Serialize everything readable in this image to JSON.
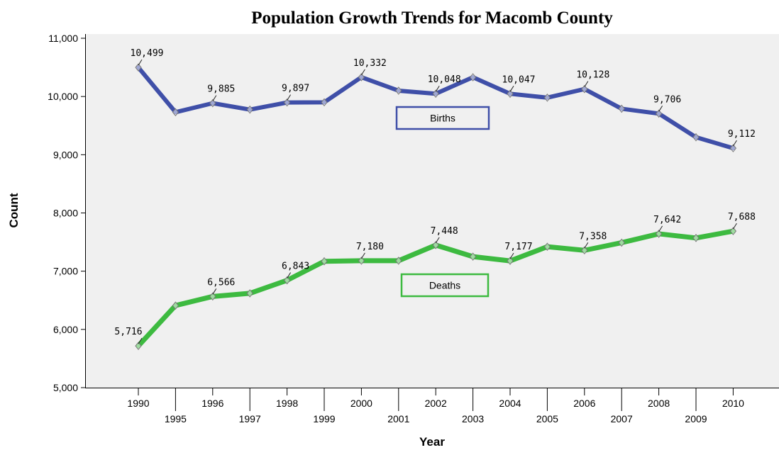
{
  "chart_data": {
    "type": "line",
    "title": "Population Growth Trends for Macomb County",
    "xlabel": "Year",
    "ylabel": "Count",
    "categories": [
      "1990",
      "1995",
      "1996",
      "1997",
      "1998",
      "1999",
      "2000",
      "2001",
      "2002",
      "2003",
      "2004",
      "2005",
      "2006",
      "2007",
      "2008",
      "2009",
      "2010"
    ],
    "ylim": [
      5000,
      11000
    ],
    "yticks": [
      "5,000",
      "6,000",
      "7,000",
      "8,000",
      "9,000",
      "10,000",
      "11,000"
    ],
    "grid": false,
    "series": [
      {
        "name": "Births",
        "color": "#3f4fa8",
        "values": [
          10499,
          9730,
          9885,
          9775,
          9897,
          9900,
          10332,
          10100,
          10048,
          10330,
          10047,
          9980,
          10128,
          9790,
          9706,
          9300,
          9112
        ],
        "data_labels": [
          "10,499",
          null,
          "9,885",
          null,
          "9,897",
          null,
          "10,332",
          null,
          "10,048",
          null,
          "10,047",
          null,
          "10,128",
          null,
          "9,706",
          null,
          "9,112"
        ]
      },
      {
        "name": "Deaths",
        "color": "#3dba40",
        "values": [
          5716,
          6410,
          6566,
          6620,
          6843,
          7170,
          7180,
          7180,
          7448,
          7250,
          7177,
          7420,
          7358,
          7490,
          7642,
          7570,
          7688
        ],
        "data_labels": [
          "5,716",
          null,
          "6,566",
          null,
          "6,843",
          null,
          "7,180",
          null,
          "7,448",
          null,
          "7,177",
          null,
          "7,358",
          null,
          "7,642",
          null,
          "7,688"
        ]
      }
    ]
  }
}
